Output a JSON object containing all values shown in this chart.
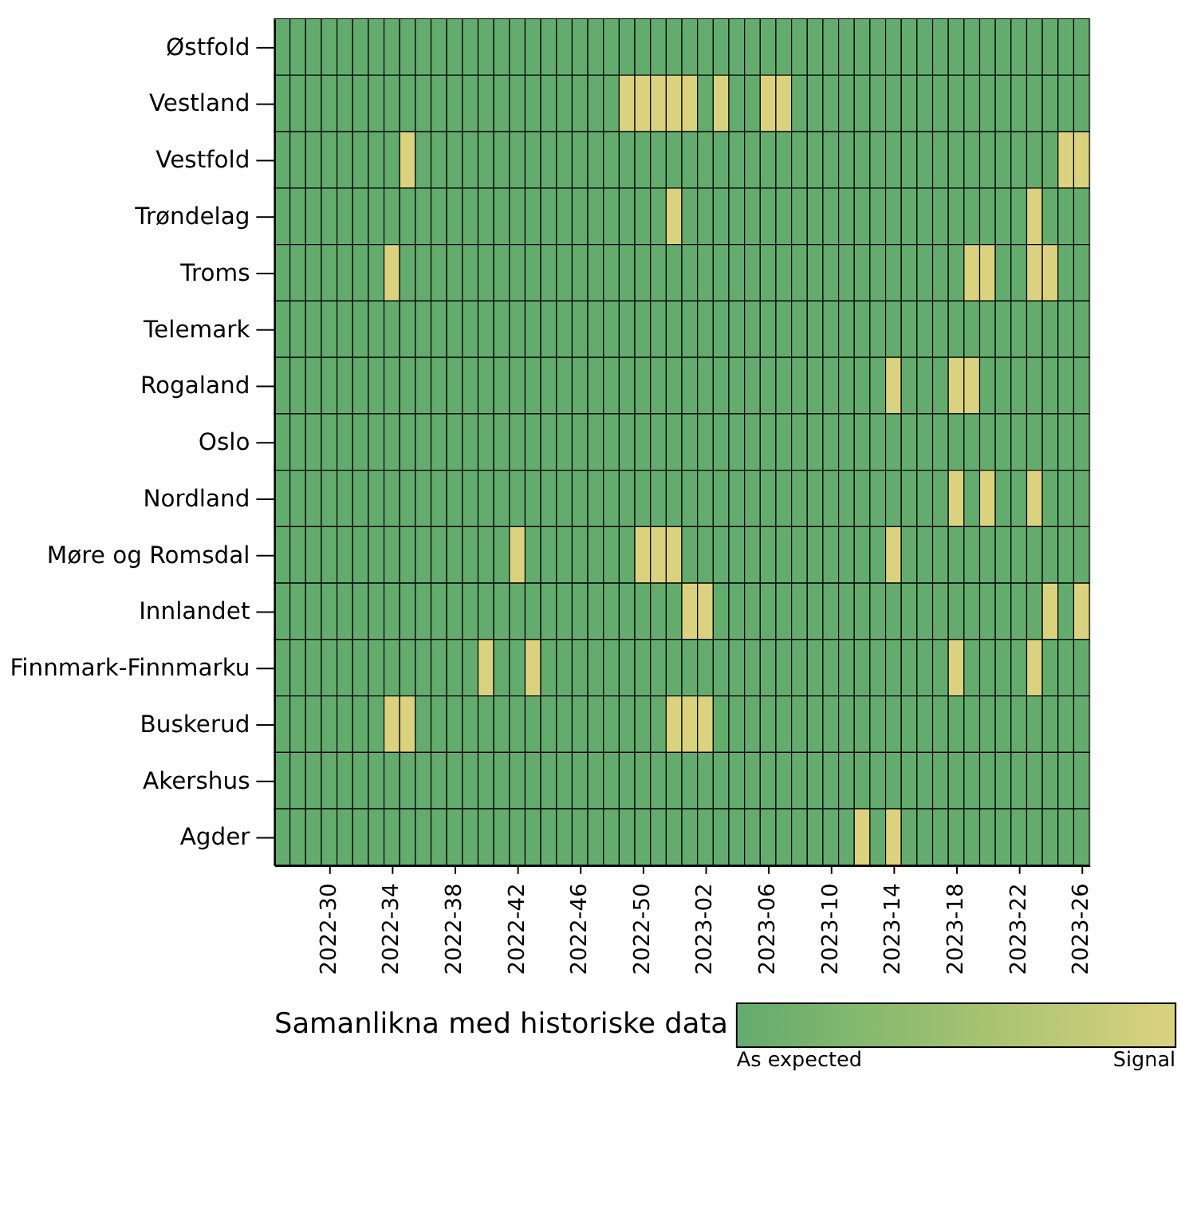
{
  "chart_data": {
    "type": "heatmap",
    "categories": [
      null,
      null,
      null,
      "2022-30",
      null,
      null,
      null,
      "2022-34",
      null,
      null,
      null,
      "2022-38",
      null,
      null,
      null,
      "2022-42",
      null,
      null,
      null,
      "2022-46",
      null,
      null,
      null,
      "2022-50",
      null,
      null,
      null,
      "2023-02",
      null,
      null,
      null,
      "2023-06",
      null,
      null,
      null,
      "2023-10",
      null,
      null,
      null,
      "2023-14",
      null,
      null,
      null,
      "2023-18",
      null,
      null,
      null,
      "2023-22",
      null,
      null,
      null,
      "2023-26"
    ],
    "y_categories": [
      "Østfold",
      "Vestland",
      "Vestfold",
      "Trøndelag",
      "Troms",
      "Telemark",
      "Rogaland",
      "Oslo",
      "Nordland",
      "Møre og Romsdal",
      "Innlandet",
      "Finnmark-Finnmarku",
      "Buskerud",
      "Akershus",
      "Agder"
    ],
    "cells": [
      [
        0,
        0,
        0,
        0,
        0,
        0,
        0,
        0,
        0,
        0,
        0,
        0,
        0,
        0,
        0,
        0,
        0,
        0,
        0,
        0,
        0,
        0,
        0,
        0,
        0,
        0,
        0,
        0,
        0,
        0,
        0,
        0,
        0,
        0,
        0,
        0,
        0,
        0,
        0,
        0,
        0,
        0,
        0,
        0,
        0,
        0,
        0,
        0,
        0,
        0,
        0,
        0
      ],
      [
        0,
        0,
        0,
        0,
        0,
        0,
        0,
        0,
        0,
        0,
        0,
        0,
        0,
        0,
        0,
        0,
        0,
        0,
        0,
        0,
        0,
        0,
        1,
        1,
        1,
        1,
        1,
        0,
        1,
        0,
        0,
        1,
        1,
        0,
        0,
        0,
        0,
        0,
        0,
        0,
        0,
        0,
        0,
        0,
        0,
        0,
        0,
        0,
        0,
        0,
        0,
        0
      ],
      [
        0,
        0,
        0,
        0,
        0,
        0,
        0,
        0,
        1,
        0,
        0,
        0,
        0,
        0,
        0,
        0,
        0,
        0,
        0,
        0,
        0,
        0,
        0,
        0,
        0,
        0,
        0,
        0,
        0,
        0,
        0,
        0,
        0,
        0,
        0,
        0,
        0,
        0,
        0,
        0,
        0,
        0,
        0,
        0,
        0,
        0,
        0,
        0,
        0,
        0,
        1,
        1
      ],
      [
        0,
        0,
        0,
        0,
        0,
        0,
        0,
        0,
        0,
        0,
        0,
        0,
        0,
        0,
        0,
        0,
        0,
        0,
        0,
        0,
        0,
        0,
        0,
        0,
        0,
        1,
        0,
        0,
        0,
        0,
        0,
        0,
        0,
        0,
        0,
        0,
        0,
        0,
        0,
        0,
        0,
        0,
        0,
        0,
        0,
        0,
        0,
        0,
        1,
        0,
        0,
        0
      ],
      [
        0,
        0,
        0,
        0,
        0,
        0,
        0,
        1,
        0,
        0,
        0,
        0,
        0,
        0,
        0,
        0,
        0,
        0,
        0,
        0,
        0,
        0,
        0,
        0,
        0,
        0,
        0,
        0,
        0,
        0,
        0,
        0,
        0,
        0,
        0,
        0,
        0,
        0,
        0,
        0,
        0,
        0,
        0,
        0,
        1,
        1,
        0,
        0,
        1,
        1,
        0,
        0
      ],
      [
        0,
        0,
        0,
        0,
        0,
        0,
        0,
        0,
        0,
        0,
        0,
        0,
        0,
        0,
        0,
        0,
        0,
        0,
        0,
        0,
        0,
        0,
        0,
        0,
        0,
        0,
        0,
        0,
        0,
        0,
        0,
        0,
        0,
        0,
        0,
        0,
        0,
        0,
        0,
        0,
        0,
        0,
        0,
        0,
        0,
        0,
        0,
        0,
        0,
        0,
        0,
        0
      ],
      [
        0,
        0,
        0,
        0,
        0,
        0,
        0,
        0,
        0,
        0,
        0,
        0,
        0,
        0,
        0,
        0,
        0,
        0,
        0,
        0,
        0,
        0,
        0,
        0,
        0,
        0,
        0,
        0,
        0,
        0,
        0,
        0,
        0,
        0,
        0,
        0,
        0,
        0,
        0,
        1,
        0,
        0,
        0,
        1,
        1,
        0,
        0,
        0,
        0,
        0,
        0,
        0
      ],
      [
        0,
        0,
        0,
        0,
        0,
        0,
        0,
        0,
        0,
        0,
        0,
        0,
        0,
        0,
        0,
        0,
        0,
        0,
        0,
        0,
        0,
        0,
        0,
        0,
        0,
        0,
        0,
        0,
        0,
        0,
        0,
        0,
        0,
        0,
        0,
        0,
        0,
        0,
        0,
        0,
        0,
        0,
        0,
        0,
        0,
        0,
        0,
        0,
        0,
        0,
        0,
        0
      ],
      [
        0,
        0,
        0,
        0,
        0,
        0,
        0,
        0,
        0,
        0,
        0,
        0,
        0,
        0,
        0,
        0,
        0,
        0,
        0,
        0,
        0,
        0,
        0,
        0,
        0,
        0,
        0,
        0,
        0,
        0,
        0,
        0,
        0,
        0,
        0,
        0,
        0,
        0,
        0,
        0,
        0,
        0,
        0,
        1,
        0,
        1,
        0,
        0,
        1,
        0,
        0,
        0
      ],
      [
        0,
        0,
        0,
        0,
        0,
        0,
        0,
        0,
        0,
        0,
        0,
        0,
        0,
        0,
        0,
        1,
        0,
        0,
        0,
        0,
        0,
        0,
        0,
        1,
        1,
        1,
        0,
        0,
        0,
        0,
        0,
        0,
        0,
        0,
        0,
        0,
        0,
        0,
        0,
        1,
        0,
        0,
        0,
        0,
        0,
        0,
        0,
        0,
        0,
        0,
        0,
        0
      ],
      [
        0,
        0,
        0,
        0,
        0,
        0,
        0,
        0,
        0,
        0,
        0,
        0,
        0,
        0,
        0,
        0,
        0,
        0,
        0,
        0,
        0,
        0,
        0,
        0,
        0,
        0,
        1,
        1,
        0,
        0,
        0,
        0,
        0,
        0,
        0,
        0,
        0,
        0,
        0,
        0,
        0,
        0,
        0,
        0,
        0,
        0,
        0,
        0,
        0,
        1,
        0,
        1
      ],
      [
        0,
        0,
        0,
        0,
        0,
        0,
        0,
        0,
        0,
        0,
        0,
        0,
        0,
        1,
        0,
        0,
        1,
        0,
        0,
        0,
        0,
        0,
        0,
        0,
        0,
        0,
        0,
        0,
        0,
        0,
        0,
        0,
        0,
        0,
        0,
        0,
        0,
        0,
        0,
        0,
        0,
        0,
        0,
        1,
        0,
        0,
        0,
        0,
        1,
        0,
        0,
        0
      ],
      [
        0,
        0,
        0,
        0,
        0,
        0,
        0,
        1,
        1,
        0,
        0,
        0,
        0,
        0,
        0,
        0,
        0,
        0,
        0,
        0,
        0,
        0,
        0,
        0,
        0,
        1,
        1,
        1,
        0,
        0,
        0,
        0,
        0,
        0,
        0,
        0,
        0,
        0,
        0,
        0,
        0,
        0,
        0,
        0,
        0,
        0,
        0,
        0,
        0,
        0,
        0,
        0
      ],
      [
        0,
        0,
        0,
        0,
        0,
        0,
        0,
        0,
        0,
        0,
        0,
        0,
        0,
        0,
        0,
        0,
        0,
        0,
        0,
        0,
        0,
        0,
        0,
        0,
        0,
        0,
        0,
        0,
        0,
        0,
        0,
        0,
        0,
        0,
        0,
        0,
        0,
        0,
        0,
        0,
        0,
        0,
        0,
        0,
        0,
        0,
        0,
        0,
        0,
        0,
        0,
        0
      ],
      [
        0,
        0,
        0,
        0,
        0,
        0,
        0,
        0,
        0,
        0,
        0,
        0,
        0,
        0,
        0,
        0,
        0,
        0,
        0,
        0,
        0,
        0,
        0,
        0,
        0,
        0,
        0,
        0,
        0,
        0,
        0,
        0,
        0,
        0,
        0,
        0,
        0,
        1,
        0,
        1,
        0,
        0,
        0,
        0,
        0,
        0,
        0,
        0,
        0,
        0,
        0,
        0
      ]
    ],
    "colors": [
      "#63ac6e",
      "#dbd27f"
    ],
    "clim": [
      0,
      1
    ],
    "cticks": [
      {
        "value": 0,
        "label": "As expected"
      },
      {
        "value": 1,
        "label": "Signal"
      }
    ],
    "clabel": "Samanlikna med historiske data"
  }
}
